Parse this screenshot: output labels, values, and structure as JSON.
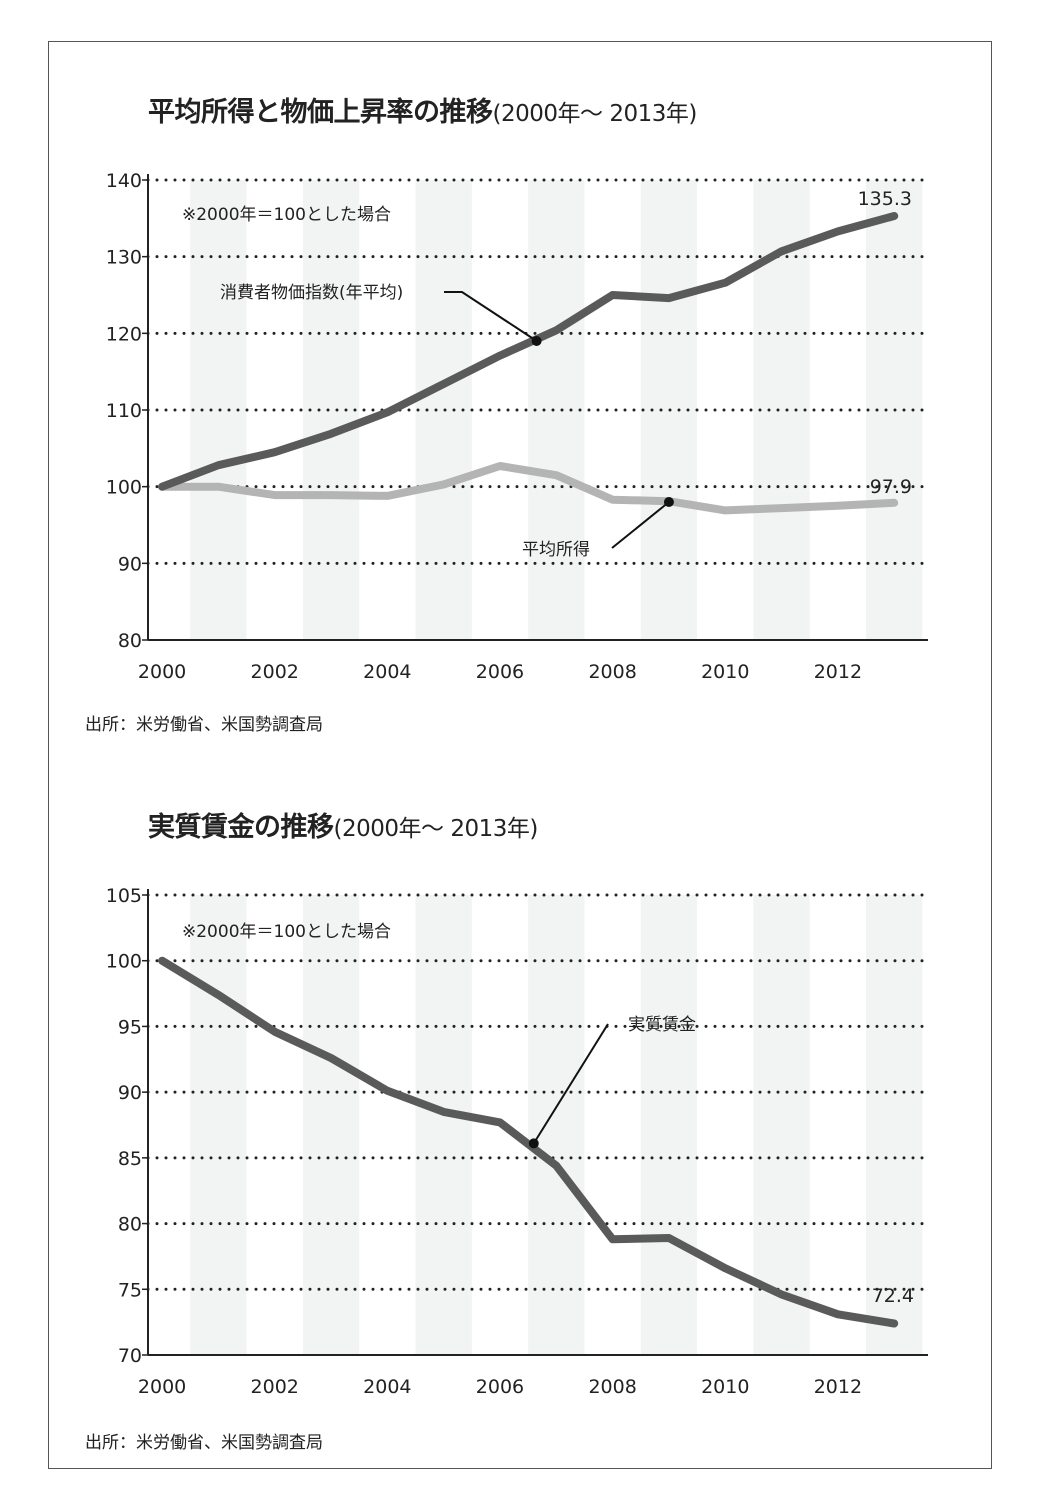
{
  "chart_data": [
    {
      "type": "line",
      "title": "平均所得と物価上昇率の推移",
      "subtitle": "(2000年〜 2013年)",
      "note": "※2000年＝100とした場合",
      "source": "出所：米労働省、米国勢調査局",
      "x": [
        2000,
        2001,
        2002,
        2003,
        2004,
        2005,
        2006,
        2007,
        2008,
        2009,
        2010,
        2011,
        2012,
        2013
      ],
      "x_ticks": [
        "2000",
        "2002",
        "2004",
        "2006",
        "2008",
        "2010",
        "2012"
      ],
      "y_ticks": [
        "80",
        "90",
        "100",
        "110",
        "120",
        "130",
        "140"
      ],
      "ylim": [
        80,
        140
      ],
      "xlim": [
        1999.75,
        2013.6
      ],
      "grid": "horizontal-dotted",
      "series": [
        {
          "name": "消費者物価指数(年平均)",
          "color": "#5a5a5a",
          "values": [
            100,
            102.8,
            104.5,
            106.9,
            109.7,
            113.4,
            117.1,
            120.4,
            125.0,
            124.6,
            126.6,
            130.7,
            133.3,
            135.3
          ],
          "end_label": "135.3",
          "pointer": {
            "x": 2006.65,
            "y": 119.0
          }
        },
        {
          "name": "平均所得",
          "color": "#b4b4b4",
          "values": [
            100,
            100.0,
            98.9,
            98.9,
            98.8,
            100.3,
            102.7,
            101.5,
            98.3,
            98.1,
            96.9,
            97.2,
            97.5,
            97.9
          ],
          "end_label": "97.9",
          "pointer": {
            "x": 2009.0,
            "y": 98.0
          }
        }
      ]
    },
    {
      "type": "line",
      "title": "実質賃金の推移",
      "subtitle": "(2000年〜 2013年)",
      "note": "※2000年＝100とした場合",
      "source": "出所：米労働省、米国勢調査局",
      "x": [
        2000,
        2001,
        2002,
        2003,
        2004,
        2005,
        2006,
        2007,
        2008,
        2009,
        2010,
        2011,
        2012,
        2013
      ],
      "x_ticks": [
        "2000",
        "2002",
        "2004",
        "2006",
        "2008",
        "2010",
        "2012"
      ],
      "y_ticks": [
        "70",
        "75",
        "80",
        "85",
        "90",
        "95",
        "100",
        "105"
      ],
      "ylim": [
        70,
        105
      ],
      "xlim": [
        1999.75,
        2013.6
      ],
      "grid": "horizontal-dotted",
      "series": [
        {
          "name": "実質賃金",
          "color": "#5a5a5a",
          "values": [
            100,
            97.4,
            94.6,
            92.6,
            90.1,
            88.5,
            87.7,
            84.4,
            78.8,
            78.9,
            76.6,
            74.6,
            73.1,
            72.4
          ],
          "end_label": "72.4",
          "pointer": {
            "x": 2006.6,
            "y": 86.1
          }
        }
      ]
    }
  ]
}
